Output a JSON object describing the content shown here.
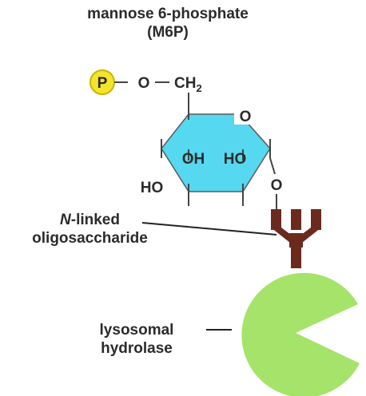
{
  "title": {
    "line1": "mannose 6-phosphate",
    "line2": "(M6P)"
  },
  "phosphate": {
    "symbol": "P",
    "color": "#f4e52c"
  },
  "sugar": {
    "linker_o": "O",
    "ch2": "CH",
    "ch2_sub": "2",
    "ring_o": "O",
    "oh": "OH",
    "ho_inner": "HO",
    "ho_left": "HO",
    "glycosidic_o": "O",
    "ring_color": "#55d8f0"
  },
  "labels": {
    "n_linked_prefix": "N",
    "n_linked_rest": "-linked",
    "oligosaccharide": "oligosaccharide",
    "lysosomal": "lysosomal",
    "hydrolase": "hydrolase"
  },
  "colors": {
    "oligosaccharide": "#6a2a1e",
    "enzyme": "#a6e36a"
  }
}
